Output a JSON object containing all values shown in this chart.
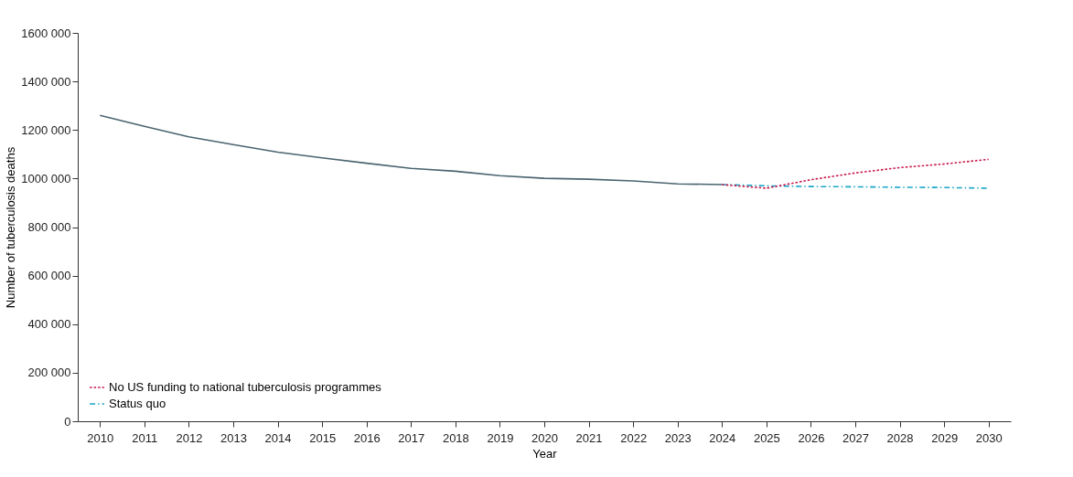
{
  "chart_data": {
    "type": "line",
    "xlabel": "Year",
    "ylabel": "Number of tuberculosis deaths",
    "categories": [
      "2010",
      "2011",
      "2012",
      "2013",
      "2014",
      "2015",
      "2016",
      "2017",
      "2018",
      "2019",
      "2020",
      "2021",
      "2022",
      "2023",
      "2024",
      "2025",
      "2026",
      "2027",
      "2028",
      "2029",
      "2030"
    ],
    "series": [
      {
        "color": "#4a6470",
        "line_style": "solid",
        "values": [
          1260000,
          1215000,
          1172000,
          1140000,
          1109000,
          1085000,
          1063000,
          1042000,
          1030000,
          1012000,
          1001000,
          997000,
          990000,
          978000,
          975000,
          null,
          null,
          null,
          null,
          null,
          null
        ]
      },
      {
        "name": "No US funding to national tuberculosis programmes",
        "color": "#c8174a",
        "line_style": "dotted",
        "values": [
          null,
          null,
          null,
          null,
          null,
          null,
          null,
          null,
          null,
          null,
          null,
          null,
          null,
          null,
          975000,
          960000,
          995000,
          1023000,
          1045000,
          1060000,
          1079000
        ]
      },
      {
        "name": "Status quo",
        "color": "#1aa6c8",
        "line_style": "dashed",
        "values": [
          null,
          null,
          null,
          null,
          null,
          null,
          null,
          null,
          null,
          null,
          null,
          null,
          null,
          null,
          975000,
          970000,
          967000,
          966000,
          964000,
          963000,
          960000
        ]
      }
    ],
    "ylim": [
      0,
      1600000
    ],
    "yticks": [
      0,
      {
        "value": 200000,
        "label": "200 000"
      },
      {
        "value": 400000,
        "label": "400 000"
      },
      {
        "value": 600000,
        "label": "600 000"
      },
      {
        "value": 800000,
        "label": "800 000"
      },
      {
        "value": 1000000,
        "label": "1000 000"
      },
      {
        "value": 1200000,
        "label": "1200 000"
      },
      {
        "value": 1400000,
        "label": "1400 000"
      },
      {
        "value": 1600000,
        "label": "1600 000"
      }
    ],
    "grid": false,
    "legend": "bottom left",
    "marker": "none"
  }
}
